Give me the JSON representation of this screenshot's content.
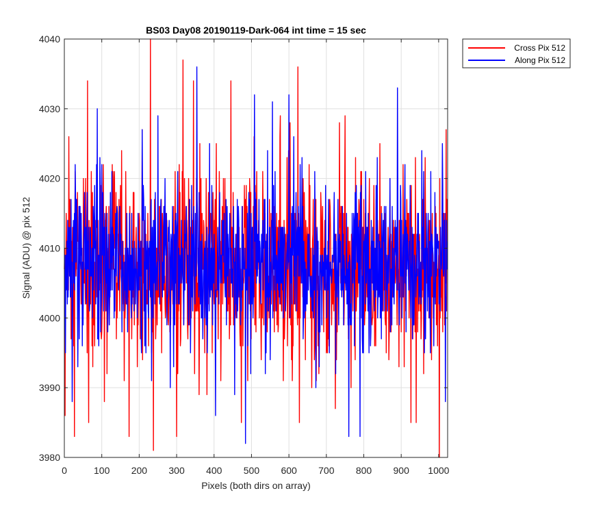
{
  "chart_data": {
    "type": "line",
    "title": "BS03 Day08 20190119-Dark-064 int time = 15 sec",
    "xlabel": "Pixels (both dirs on array)",
    "ylabel": "Signal (ADU) @ pix 512",
    "xlim": [
      0,
      1024
    ],
    "ylim": [
      3980,
      4040
    ],
    "xticks": [
      0,
      100,
      200,
      300,
      400,
      500,
      600,
      700,
      800,
      900,
      1000
    ],
    "yticks": [
      3980,
      3990,
      4000,
      4010,
      4020,
      4030,
      4040
    ],
    "grid": true,
    "legend_position": "outside-top-right",
    "series": [
      {
        "name": "Cross Pix 512",
        "color": "#ff0000",
        "n_points": 1024,
        "mean": 4007,
        "std": 7,
        "extremes": [
          {
            "x": 2,
            "y": 3986
          },
          {
            "x": 12,
            "y": 4026
          },
          {
            "x": 27,
            "y": 3983
          },
          {
            "x": 62,
            "y": 4034
          },
          {
            "x": 65,
            "y": 3985
          },
          {
            "x": 107,
            "y": 3988
          },
          {
            "x": 173,
            "y": 3983
          },
          {
            "x": 230,
            "y": 4040
          },
          {
            "x": 238,
            "y": 3981
          },
          {
            "x": 300,
            "y": 3983
          },
          {
            "x": 317,
            "y": 4037
          },
          {
            "x": 345,
            "y": 4034
          },
          {
            "x": 445,
            "y": 4034
          },
          {
            "x": 473,
            "y": 3985
          },
          {
            "x": 577,
            "y": 4029
          },
          {
            "x": 624,
            "y": 4036
          },
          {
            "x": 628,
            "y": 3985
          },
          {
            "x": 750,
            "y": 4029
          },
          {
            "x": 940,
            "y": 3985
          },
          {
            "x": 1002,
            "y": 3980
          },
          {
            "x": 1020,
            "y": 4027
          }
        ]
      },
      {
        "name": "Along Pix 512",
        "color": "#0000ff",
        "n_points": 1024,
        "mean": 4008,
        "std": 6,
        "extremes": [
          {
            "x": 86,
            "y": 4022
          },
          {
            "x": 88,
            "y": 4030
          },
          {
            "x": 208,
            "y": 4027
          },
          {
            "x": 250,
            "y": 4029
          },
          {
            "x": 354,
            "y": 4036
          },
          {
            "x": 404,
            "y": 3986
          },
          {
            "x": 484,
            "y": 3982
          },
          {
            "x": 508,
            "y": 4032
          },
          {
            "x": 556,
            "y": 4031
          },
          {
            "x": 600,
            "y": 4032
          },
          {
            "x": 760,
            "y": 3983
          },
          {
            "x": 790,
            "y": 3983
          },
          {
            "x": 890,
            "y": 4033
          },
          {
            "x": 1010,
            "y": 4025
          },
          {
            "x": 1018,
            "y": 3988
          }
        ]
      }
    ]
  }
}
